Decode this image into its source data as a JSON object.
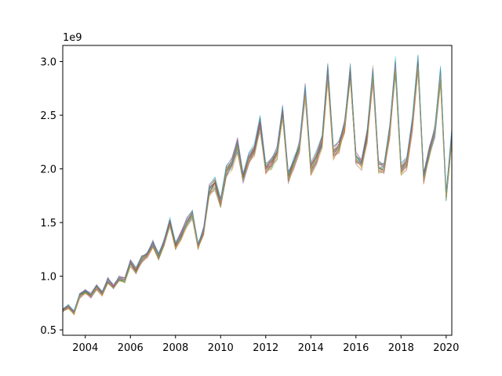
{
  "chart_data": {
    "type": "line",
    "title": "",
    "xlabel": "",
    "ylabel": "",
    "offset_text": "1e9",
    "xlim": [
      2003.0,
      2020.25
    ],
    "ylim": [
      0.45,
      3.15
    ],
    "x_ticks": [
      2004,
      2006,
      2008,
      2010,
      2012,
      2014,
      2016,
      2018,
      2020
    ],
    "y_ticks": [
      0.5,
      1.0,
      1.5,
      2.0,
      2.5,
      3.0
    ],
    "x_tick_labels": [
      "2004",
      "2006",
      "2008",
      "2010",
      "2012",
      "2014",
      "2016",
      "2018",
      "2020"
    ],
    "y_tick_labels": [
      "0.5",
      "1.0",
      "1.5",
      "2.0",
      "2.5",
      "3.0"
    ],
    "grid": false,
    "legend": "none",
    "series_count": 30,
    "series_spread": 0.04,
    "palette": [
      "#1f77b4",
      "#ff7f0e",
      "#2ca02c",
      "#d62728",
      "#9467bd",
      "#8c564b",
      "#e377c2",
      "#7f7f7f",
      "#bcbd22",
      "#17becf"
    ],
    "central_series": {
      "x": [
        2003.0,
        2003.25,
        2003.5,
        2003.75,
        2004.0,
        2004.25,
        2004.5,
        2004.75,
        2005.0,
        2005.25,
        2005.5,
        2005.75,
        2006.0,
        2006.25,
        2006.5,
        2006.75,
        2007.0,
        2007.25,
        2007.5,
        2007.75,
        2008.0,
        2008.25,
        2008.5,
        2008.75,
        2009.0,
        2009.25,
        2009.5,
        2009.75,
        2010.0,
        2010.25,
        2010.5,
        2010.75,
        2011.0,
        2011.25,
        2011.5,
        2011.75,
        2012.0,
        2012.25,
        2012.5,
        2012.75,
        2013.0,
        2013.25,
        2013.5,
        2013.75,
        2014.0,
        2014.25,
        2014.5,
        2014.75,
        2015.0,
        2015.25,
        2015.5,
        2015.75,
        2016.0,
        2016.25,
        2016.5,
        2016.75,
        2017.0,
        2017.25,
        2017.5,
        2017.75,
        2018.0,
        2018.25,
        2018.5,
        2018.75,
        2019.0,
        2019.25,
        2019.5,
        2019.75,
        2020.0,
        2020.25
      ],
      "y": [
        0.68,
        0.72,
        0.66,
        0.82,
        0.86,
        0.82,
        0.9,
        0.84,
        0.96,
        0.9,
        0.98,
        0.96,
        1.12,
        1.05,
        1.16,
        1.2,
        1.3,
        1.18,
        1.32,
        1.5,
        1.28,
        1.38,
        1.5,
        1.58,
        1.28,
        1.42,
        1.8,
        1.86,
        1.68,
        1.98,
        2.05,
        2.22,
        1.92,
        2.1,
        2.18,
        2.42,
        2.0,
        2.05,
        2.15,
        2.52,
        1.92,
        2.05,
        2.2,
        2.72,
        2.0,
        2.1,
        2.25,
        2.9,
        2.15,
        2.2,
        2.4,
        2.9,
        2.1,
        2.05,
        2.3,
        2.88,
        2.02,
        2.0,
        2.35,
        2.95,
        2.0,
        2.05,
        2.4,
        2.98,
        1.92,
        2.15,
        2.35,
        2.88,
        1.75,
        2.3
      ]
    }
  }
}
